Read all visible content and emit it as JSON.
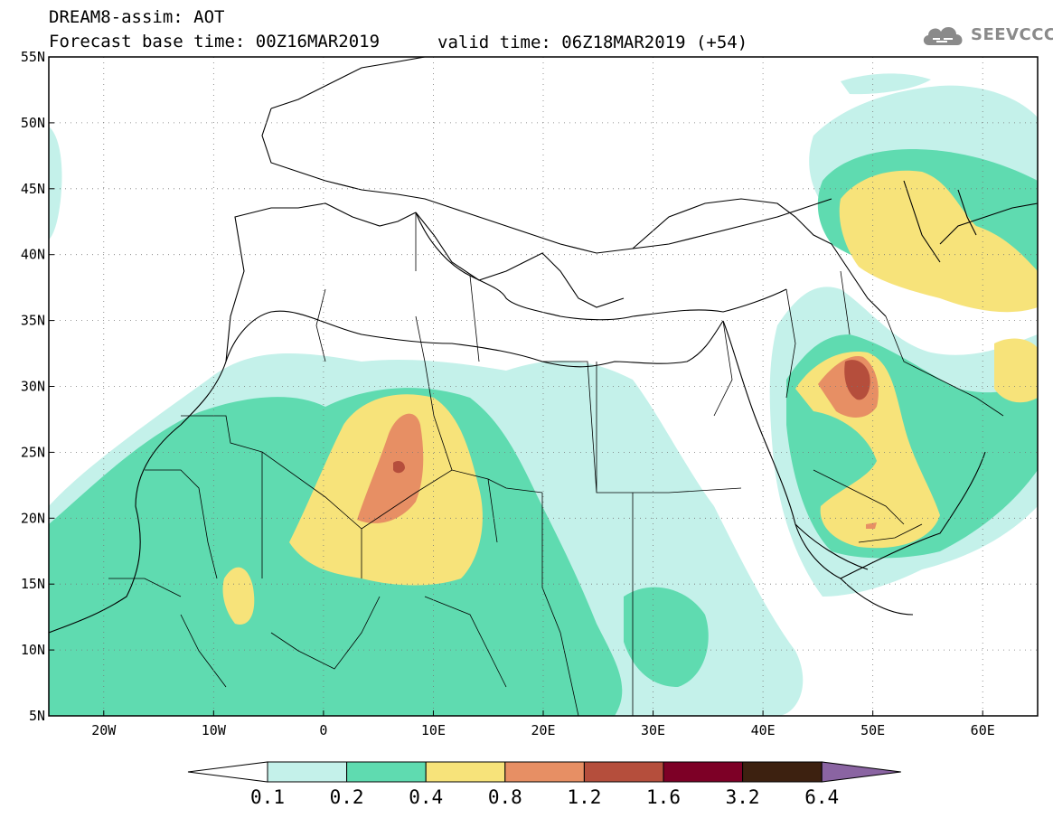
{
  "header": {
    "title": "DREAM8-assim: AOT",
    "base_time": "Forecast base time: 00Z16MAR2019",
    "valid_time": "valid time: 06Z18MAR2019 (+54)"
  },
  "logo": {
    "text": "SEEVCCC",
    "icon": "cloud-icon",
    "color": "#8a8a8a"
  },
  "map": {
    "lon_range": [
      -25,
      65
    ],
    "lat_range": [
      5,
      55
    ],
    "lat_ticks": [
      "5N",
      "10N",
      "15N",
      "20N",
      "25N",
      "30N",
      "35N",
      "40N",
      "45N",
      "50N",
      "55N"
    ],
    "lon_ticks": [
      "20W",
      "10W",
      "0",
      "10E",
      "20E",
      "30E",
      "40E",
      "50E",
      "60E"
    ],
    "grid": "dotted"
  },
  "colorbar": {
    "labels": [
      "0.1",
      "0.2",
      "0.4",
      "0.8",
      "1.2",
      "1.6",
      "3.2",
      "6.4"
    ],
    "colors": [
      "#c4f1ea",
      "#5fdbb0",
      "#f7e37a",
      "#e78f64",
      "#b54e3c",
      "#7d0026",
      "#3d2110",
      "#8a64a2"
    ],
    "under_color": "#ffffff",
    "over_color": "#8a64a2"
  }
}
